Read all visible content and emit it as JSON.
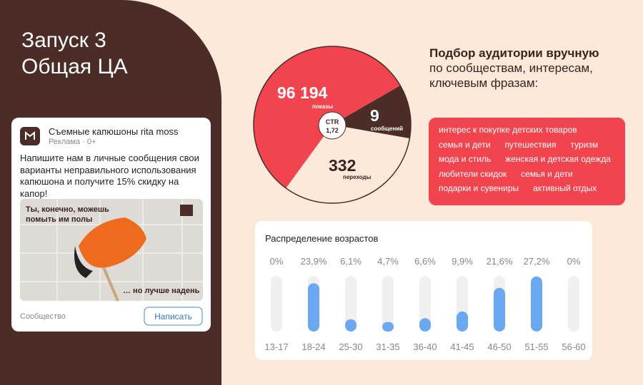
{
  "slide": {
    "title_lines": [
      "Запуск 3",
      "Общая ЦА"
    ]
  },
  "ad": {
    "name": "Съемные капюшоны rita moss",
    "meta": "Реклама · 0+",
    "text_lines": [
      "Напишите нам в личные сообщения свои",
      "варианты неправильного использования",
      "капюшона и получите 15% скидку на",
      "капор!"
    ],
    "image_captions": [
      "Ты, конечно, можешь",
      "помыть им полы",
      "… но лучше надень"
    ],
    "footer": "Сообщество",
    "button": "Написать"
  },
  "stats": {
    "shows": {
      "value": "96 194",
      "label": "показы"
    },
    "messages": {
      "value": "9",
      "label": "сообщений"
    },
    "clicks": {
      "value": "332",
      "label": "переходы"
    },
    "ctr": {
      "label": "CTR",
      "value": "1,72"
    }
  },
  "targeting": {
    "heading_bold": "Подбор аудитории вручную",
    "heading_lines": [
      "по сообществам, интересам,",
      "ключевым фразам:"
    ],
    "tags": [
      [
        "интерес к покупке детских товаров"
      ],
      [
        "семья и дети",
        "путешествия",
        "туризм"
      ],
      [
        "мода и стиль",
        "женская и детская одежда"
      ],
      [
        "любители скидок",
        "семья и дети"
      ],
      [
        "подарки и сувениры",
        "активный отдых"
      ]
    ]
  },
  "chart_data": {
    "type": "bar",
    "title": "Распределение возрастов",
    "categories": [
      "13-17",
      "18-24",
      "25-30",
      "31-35",
      "36-40",
      "41-45",
      "46-50",
      "51-55",
      "56-60"
    ],
    "values": [
      0,
      23.9,
      6.1,
      4.7,
      6.6,
      9.9,
      21.6,
      27.2,
      0
    ],
    "value_labels": [
      "0%",
      "23,9%",
      "6,1%",
      "4,7%",
      "6,6%",
      "9,9%",
      "21,6%",
      "27,2%",
      "0%"
    ],
    "color": "#6aa8f2",
    "ylim": [
      0,
      27.5
    ]
  }
}
